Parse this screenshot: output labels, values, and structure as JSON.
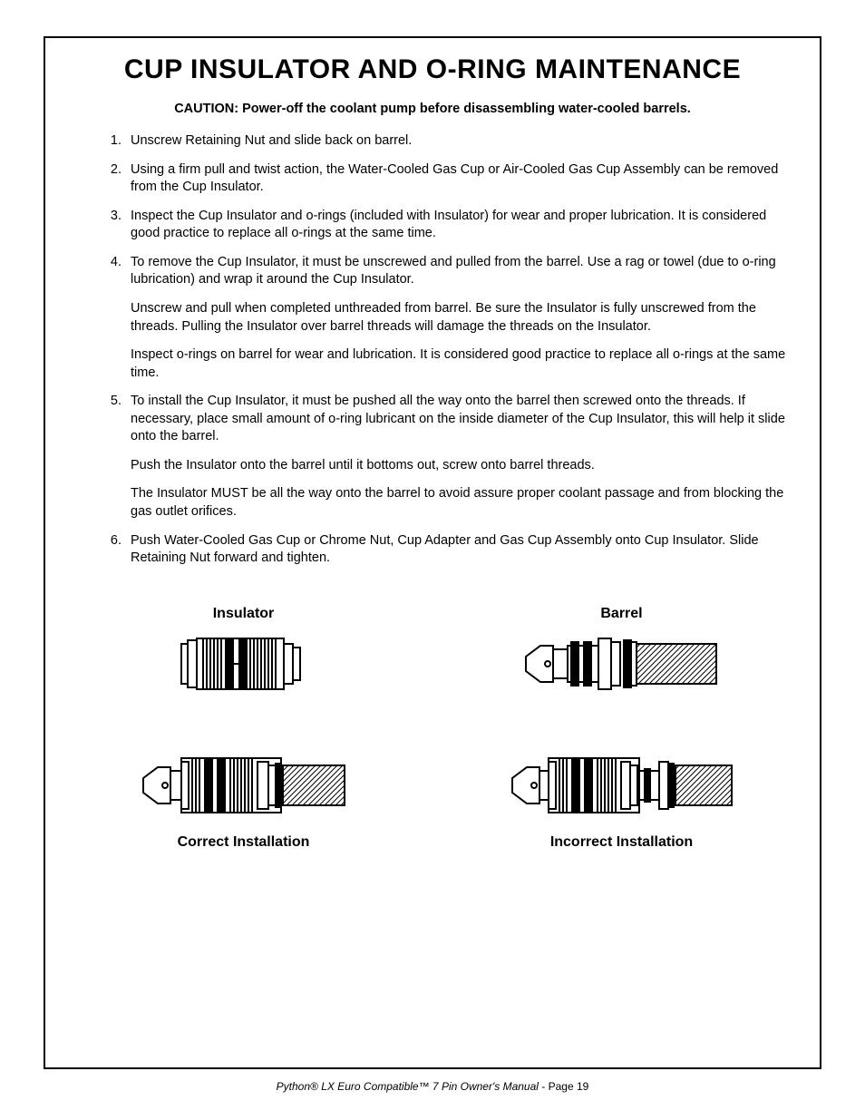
{
  "title": "CUP INSULATOR AND O-RING MAINTENANCE",
  "caution_label": "CAUTION:  ",
  "caution_text": "Power-off the coolant pump before disassembling water-cooled barrels.",
  "steps": [
    {
      "text": "Unscrew Retaining Nut and slide back on barrel.",
      "paras": []
    },
    {
      "text": "Using a firm pull and twist action, the Water-Cooled Gas Cup or Air-Cooled Gas Cup Assembly can be removed from the Cup Insulator.",
      "paras": []
    },
    {
      "text": "Inspect the Cup Insulator and o-rings (included with Insulator) for wear and proper lubrication.  It is considered good practice to replace all o-rings at the same time.",
      "paras": []
    },
    {
      "text": "To remove the Cup Insulator, it must be unscrewed and pulled from the barrel.  Use a rag or towel (due to o-ring lubrication) and wrap it around the Cup Insulator.",
      "paras": [
        "Unscrew and pull when completed unthreaded from barrel.  Be sure the Insulator is fully unscrewed from the threads.  Pulling the Insulator over barrel threads will damage the threads on the Insulator.",
        "Inspect o-rings on barrel for wear and lubrication.  It is considered good practice to replace all o-rings at the same time."
      ]
    },
    {
      "text": "To install the Cup Insulator, it must be pushed all the way onto the barrel then screwed onto the threads.  If necessary, place small amount of o-ring lubricant on the inside diameter of the Cup Insulator, this will help it slide onto the barrel.",
      "paras": [
        "Push the Insulator onto the barrel until it bottoms out, screw onto barrel threads.",
        "The Insulator MUST be all the way onto the barrel to avoid assure proper coolant passage and from blocking the gas outlet orifices."
      ]
    },
    {
      "text": "Push Water-Cooled Gas Cup or Chrome Nut, Cup Adapter and Gas Cup Assembly onto Cup Insulator.  Slide Retaining Nut forward and tighten.",
      "paras": []
    }
  ],
  "labels": {
    "insulator": "Insulator",
    "barrel": "Barrel",
    "correct": "Correct Installation",
    "incorrect": "Incorrect Installation"
  },
  "footer": {
    "italic_part": "Python® LX Euro Compatible™ 7 Pin Owner's Manual",
    "normal_part": " - Page 19"
  },
  "diagram": {
    "stroke": "#000000",
    "fill_bg": "#ffffff",
    "hatch_spacing": 4
  }
}
